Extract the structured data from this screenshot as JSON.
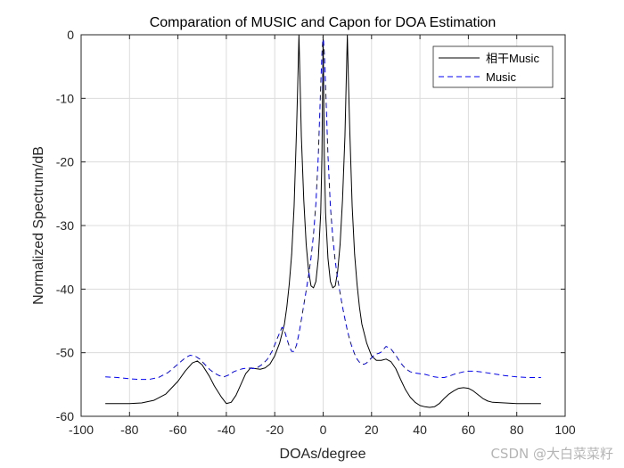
{
  "chart_data": {
    "type": "line",
    "title": "Comparation of MUSIC and Capon for DOA Estimation",
    "xlabel": "DOAs/degree",
    "ylabel": "Normalized Spectrum/dB",
    "xlim": [
      -100,
      100
    ],
    "ylim": [
      -60,
      0
    ],
    "xticks": [
      -100,
      -80,
      -60,
      -40,
      -20,
      0,
      20,
      40,
      60,
      80,
      100
    ],
    "yticks": [
      -60,
      -50,
      -40,
      -30,
      -20,
      -10,
      0
    ],
    "grid": true,
    "legend_position": "top-right",
    "series": [
      {
        "name": "相干Music",
        "color": "#000000",
        "style": "solid",
        "x": [
          -90,
          -85,
          -80,
          -75,
          -70,
          -65,
          -60,
          -57,
          -54,
          -52,
          -50,
          -47,
          -45,
          -42,
          -40,
          -38,
          -36,
          -34,
          -32,
          -30,
          -28,
          -26,
          -24,
          -22,
          -20,
          -18,
          -16,
          -15,
          -14,
          -13,
          -12,
          -11,
          -10.5,
          -10,
          -9.5,
          -9,
          -8,
          -7,
          -6,
          -5,
          -4,
          -3,
          -2,
          -1,
          -0.5,
          0,
          0.5,
          1,
          2,
          3,
          4,
          5,
          6,
          7,
          8,
          9,
          9.5,
          10,
          10.5,
          11,
          12,
          13,
          14,
          15,
          16,
          18,
          20,
          22,
          24,
          26,
          28,
          30,
          32,
          34,
          36,
          38,
          40,
          42,
          44,
          46,
          48,
          50,
          52,
          54,
          56,
          58,
          60,
          62,
          64,
          66,
          68,
          70,
          75,
          80,
          85,
          90
        ],
        "y": [
          -58.0,
          -58.0,
          -58.0,
          -57.9,
          -57.5,
          -56.5,
          -54.5,
          -52.9,
          -51.6,
          -51.3,
          -51.9,
          -53.7,
          -55.2,
          -57.0,
          -58.0,
          -57.8,
          -56.7,
          -55.0,
          -53.3,
          -52.4,
          -52.5,
          -52.6,
          -52.4,
          -51.8,
          -50.5,
          -48.5,
          -45.5,
          -42.8,
          -39.2,
          -34.5,
          -27.0,
          -15.0,
          -8.0,
          0.0,
          -8.0,
          -16.0,
          -26.0,
          -33.0,
          -37.2,
          -39.5,
          -39.8,
          -38.8,
          -35.2,
          -28.0,
          -19.0,
          0.0,
          -19.0,
          -28.0,
          -35.2,
          -38.8,
          -39.8,
          -39.5,
          -37.2,
          -33.0,
          -26.0,
          -16.0,
          -8.0,
          0.0,
          -8.0,
          -15.0,
          -27.0,
          -34.5,
          -39.2,
          -42.8,
          -45.5,
          -48.5,
          -50.5,
          -51.2,
          -51.2,
          -51.0,
          -51.4,
          -52.5,
          -54.2,
          -55.8,
          -57.0,
          -57.8,
          -58.3,
          -58.5,
          -58.6,
          -58.5,
          -58.0,
          -57.2,
          -56.5,
          -56.0,
          -55.6,
          -55.5,
          -55.6,
          -56.0,
          -56.6,
          -57.2,
          -57.6,
          -57.8,
          -57.9,
          -58.0,
          -58.0,
          -58.0
        ],
        "hidden_points_note": ""
      },
      {
        "name": "Music",
        "color": "#0000ff",
        "style": "dashed",
        "x": [
          -90,
          -85,
          -80,
          -76,
          -72,
          -68,
          -64,
          -60,
          -57,
          -55,
          -53,
          -51,
          -49,
          -47,
          -45,
          -43,
          -41,
          -39,
          -37,
          -35,
          -33,
          -31,
          -29,
          -27,
          -25,
          -23,
          -21,
          -19,
          -17,
          -16,
          -15,
          -14,
          -13,
          -12,
          -11,
          -10,
          -9,
          -8,
          -7,
          -6,
          -5,
          -4,
          -3,
          -2,
          -1,
          -0.5,
          0,
          0.5,
          1,
          2,
          3,
          4,
          5,
          6,
          7,
          8,
          9,
          10,
          11,
          12,
          13,
          14,
          15,
          16,
          17,
          18,
          19,
          20,
          21,
          22,
          23,
          24,
          26,
          28,
          30,
          32,
          34,
          36,
          38,
          40,
          42,
          44,
          46,
          48,
          50,
          52,
          54,
          56,
          58,
          60,
          62,
          65,
          70,
          75,
          80,
          85,
          90
        ],
        "y": [
          -53.8,
          -53.9,
          -54.1,
          -54.2,
          -54.2,
          -53.9,
          -53.1,
          -51.8,
          -50.8,
          -50.4,
          -50.5,
          -51.0,
          -51.8,
          -52.6,
          -53.2,
          -53.6,
          -53.8,
          -53.5,
          -53.0,
          -52.7,
          -52.5,
          -52.4,
          -52.5,
          -52.3,
          -51.8,
          -51.0,
          -49.7,
          -47.8,
          -46.0,
          -46.5,
          -47.8,
          -49.0,
          -49.8,
          -49.8,
          -48.8,
          -47.0,
          -44.8,
          -42.5,
          -40.2,
          -37.8,
          -35.0,
          -31.5,
          -26.5,
          -19.0,
          -8.0,
          -3.0,
          0.0,
          -3.0,
          -8.0,
          -19.0,
          -27.0,
          -32.0,
          -35.6,
          -38.4,
          -40.6,
          -42.8,
          -44.7,
          -46.5,
          -48.0,
          -49.2,
          -50.2,
          -51.0,
          -51.5,
          -51.8,
          -51.8,
          -51.6,
          -51.2,
          -50.8,
          -50.4,
          -50.2,
          -50.1,
          -49.9,
          -49.0,
          -49.4,
          -50.4,
          -51.6,
          -52.5,
          -53.0,
          -53.2,
          -53.3,
          -53.4,
          -53.6,
          -53.8,
          -53.9,
          -53.9,
          -53.7,
          -53.4,
          -53.2,
          -53.0,
          -52.9,
          -52.9,
          -53.0,
          -53.3,
          -53.6,
          -53.8,
          -53.9,
          -53.9
        ]
      }
    ]
  },
  "watermark": "CSDN @大白菜菜籽"
}
